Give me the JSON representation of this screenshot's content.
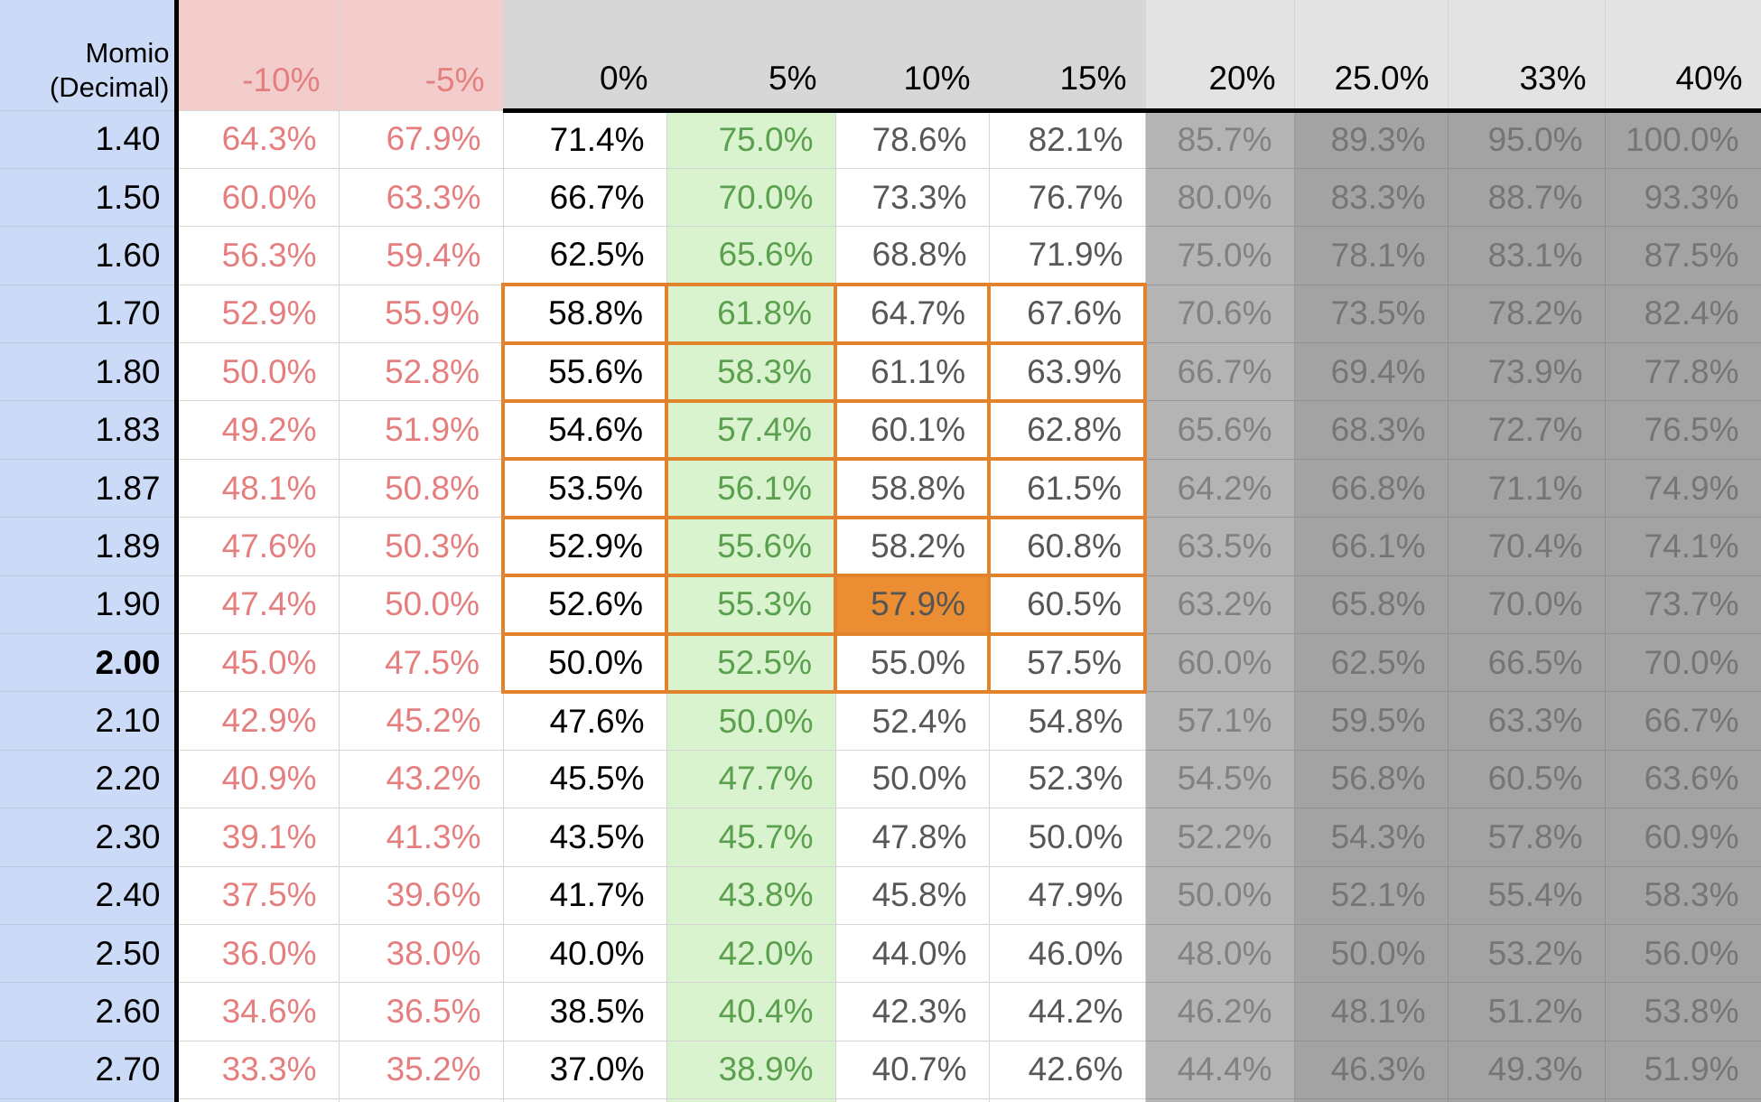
{
  "sheet": {
    "corner_header": {
      "line1": "Momio",
      "line2": "(Decimal)"
    },
    "columns": [
      {
        "label": "-10%",
        "type": "neg"
      },
      {
        "label": "-5%",
        "type": "neg"
      },
      {
        "label": "0%",
        "type": "zero"
      },
      {
        "label": "5%",
        "type": "green"
      },
      {
        "label": "10%",
        "type": "mid"
      },
      {
        "label": "15%",
        "type": "mid"
      },
      {
        "label": "20%",
        "type": "g20"
      },
      {
        "label": "25.0%",
        "type": "gdark"
      },
      {
        "label": "33%",
        "type": "gdark"
      },
      {
        "label": "40%",
        "type": "gdark"
      }
    ],
    "rows": [
      {
        "odds": "1.40",
        "bold": false,
        "values": [
          "64.3%",
          "67.9%",
          "71.4%",
          "75.0%",
          "78.6%",
          "82.1%",
          "85.7%",
          "89.3%",
          "95.0%",
          "100.0%"
        ]
      },
      {
        "odds": "1.50",
        "bold": false,
        "values": [
          "60.0%",
          "63.3%",
          "66.7%",
          "70.0%",
          "73.3%",
          "76.7%",
          "80.0%",
          "83.3%",
          "88.7%",
          "93.3%"
        ]
      },
      {
        "odds": "1.60",
        "bold": false,
        "values": [
          "56.3%",
          "59.4%",
          "62.5%",
          "65.6%",
          "68.8%",
          "71.9%",
          "75.0%",
          "78.1%",
          "83.1%",
          "87.5%"
        ]
      },
      {
        "odds": "1.70",
        "bold": false,
        "values": [
          "52.9%",
          "55.9%",
          "58.8%",
          "61.8%",
          "64.7%",
          "67.6%",
          "70.6%",
          "73.5%",
          "78.2%",
          "82.4%"
        ]
      },
      {
        "odds": "1.80",
        "bold": false,
        "values": [
          "50.0%",
          "52.8%",
          "55.6%",
          "58.3%",
          "61.1%",
          "63.9%",
          "66.7%",
          "69.4%",
          "73.9%",
          "77.8%"
        ]
      },
      {
        "odds": "1.83",
        "bold": false,
        "values": [
          "49.2%",
          "51.9%",
          "54.6%",
          "57.4%",
          "60.1%",
          "62.8%",
          "65.6%",
          "68.3%",
          "72.7%",
          "76.5%"
        ]
      },
      {
        "odds": "1.87",
        "bold": false,
        "values": [
          "48.1%",
          "50.8%",
          "53.5%",
          "56.1%",
          "58.8%",
          "61.5%",
          "64.2%",
          "66.8%",
          "71.1%",
          "74.9%"
        ]
      },
      {
        "odds": "1.89",
        "bold": false,
        "values": [
          "47.6%",
          "50.3%",
          "52.9%",
          "55.6%",
          "58.2%",
          "60.8%",
          "63.5%",
          "66.1%",
          "70.4%",
          "74.1%"
        ]
      },
      {
        "odds": "1.90",
        "bold": false,
        "values": [
          "47.4%",
          "50.0%",
          "52.6%",
          "55.3%",
          "57.9%",
          "60.5%",
          "63.2%",
          "65.8%",
          "70.0%",
          "73.7%"
        ]
      },
      {
        "odds": "2.00",
        "bold": true,
        "values": [
          "45.0%",
          "47.5%",
          "50.0%",
          "52.5%",
          "55.0%",
          "57.5%",
          "60.0%",
          "62.5%",
          "66.5%",
          "70.0%"
        ]
      },
      {
        "odds": "2.10",
        "bold": false,
        "values": [
          "42.9%",
          "45.2%",
          "47.6%",
          "50.0%",
          "52.4%",
          "54.8%",
          "57.1%",
          "59.5%",
          "63.3%",
          "66.7%"
        ]
      },
      {
        "odds": "2.20",
        "bold": false,
        "values": [
          "40.9%",
          "43.2%",
          "45.5%",
          "47.7%",
          "50.0%",
          "52.3%",
          "54.5%",
          "56.8%",
          "60.5%",
          "63.6%"
        ]
      },
      {
        "odds": "2.30",
        "bold": false,
        "values": [
          "39.1%",
          "41.3%",
          "43.5%",
          "45.7%",
          "47.8%",
          "50.0%",
          "52.2%",
          "54.3%",
          "57.8%",
          "60.9%"
        ]
      },
      {
        "odds": "2.40",
        "bold": false,
        "values": [
          "37.5%",
          "39.6%",
          "41.7%",
          "43.8%",
          "45.8%",
          "47.9%",
          "50.0%",
          "52.1%",
          "55.4%",
          "58.3%"
        ]
      },
      {
        "odds": "2.50",
        "bold": false,
        "values": [
          "36.0%",
          "38.0%",
          "40.0%",
          "42.0%",
          "44.0%",
          "46.0%",
          "48.0%",
          "50.0%",
          "53.2%",
          "56.0%"
        ]
      },
      {
        "odds": "2.60",
        "bold": false,
        "values": [
          "34.6%",
          "36.5%",
          "38.5%",
          "40.4%",
          "42.3%",
          "44.2%",
          "46.2%",
          "48.1%",
          "51.2%",
          "53.8%"
        ]
      },
      {
        "odds": "2.70",
        "bold": false,
        "values": [
          "33.3%",
          "35.2%",
          "37.0%",
          "38.9%",
          "40.7%",
          "42.6%",
          "44.4%",
          "46.3%",
          "49.3%",
          "51.9%"
        ]
      }
    ],
    "highlight": {
      "block": {
        "row_start": "1.70",
        "row_end": "2.00",
        "col_start": "0%",
        "col_end": "15%",
        "border_color": "#e2832c"
      },
      "selected_cell": {
        "row": "1.90",
        "column": "10%",
        "value": "57.9%",
        "fill_color": "#eb8e33"
      }
    },
    "colors": {
      "column_a_bg": "#cbdaf6",
      "negative_header_bg": "#f3cdcb",
      "negative_text": "#e57f7f",
      "header_gray_bg": "#d7d7d7",
      "header_light_gray_bg": "#e3e3e3",
      "green_col_bg": "#d8f3ce",
      "green_text": "#5ba04e",
      "mid_gray_text": "#57575a",
      "gray20_col_bg": "#b4b4b4",
      "gray25plus_col_bg": "#a3a3a3",
      "orange_border": "#e2832c",
      "orange_fill": "#eb8e33",
      "grid_black_line": "#000000"
    }
  }
}
